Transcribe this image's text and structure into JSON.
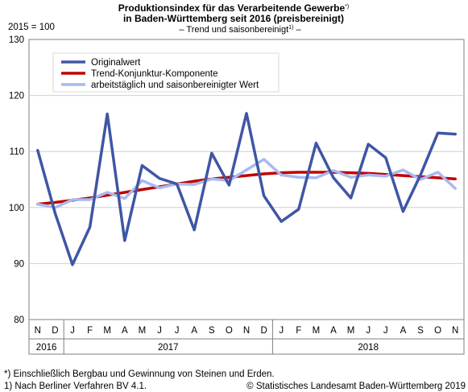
{
  "chart_data": {
    "type": "line",
    "title_line1": "Produktionsindex für das Verarbeitende Gewerbe",
    "title_line1_sup": "*)",
    "title_line2": "in Baden-Württemberg seit 2016 (preisbereinigt)",
    "subtitle_prefix": "– Trend und saisonbereinigt",
    "subtitle_sup": "1)",
    "subtitle_suffix": " –",
    "ylabel": "2015 = 100",
    "ylim": [
      80,
      130
    ],
    "yticks": [
      80,
      90,
      100,
      110,
      120,
      130
    ],
    "grid": true,
    "legend_position": "top-left",
    "x": [
      "N",
      "D",
      "J",
      "F",
      "M",
      "A",
      "M",
      "J",
      "J",
      "A",
      "S",
      "O",
      "N",
      "D",
      "J",
      "F",
      "M",
      "A",
      "M",
      "J",
      "J",
      "A",
      "S",
      "O",
      "N"
    ],
    "years": [
      {
        "label": "2016",
        "start": 0,
        "end": 1
      },
      {
        "label": "2017",
        "start": 2,
        "end": 13
      },
      {
        "label": "2018",
        "start": 14,
        "end": 24
      }
    ],
    "series": [
      {
        "name": "Originalwert",
        "color": "#3f56a4",
        "values": [
          110.2,
          99.0,
          89.8,
          96.5,
          116.7,
          94.1,
          107.5,
          105.2,
          104.2,
          96.0,
          109.7,
          104.0,
          116.8,
          102.1,
          97.5,
          99.7,
          111.5,
          105.3,
          101.7,
          111.3,
          108.9,
          99.3,
          105.8,
          113.3,
          113.1
        ]
      },
      {
        "name": "Trend-Konjunktur-Komponente",
        "color": "#c00000",
        "values": [
          100.6,
          100.9,
          101.3,
          101.7,
          102.2,
          102.7,
          103.2,
          103.7,
          104.2,
          104.7,
          105.1,
          105.4,
          105.7,
          106.0,
          106.2,
          106.3,
          106.3,
          106.3,
          106.2,
          106.1,
          105.9,
          105.7,
          105.5,
          105.3,
          105.1
        ]
      },
      {
        "name": "arbeitstäglich und saisonbereinigter Wert",
        "color": "#a9b9f0",
        "values": [
          100.6,
          100.0,
          101.4,
          101.4,
          102.7,
          101.6,
          104.8,
          103.5,
          104.2,
          104.1,
          105.1,
          104.8,
          106.7,
          108.6,
          105.8,
          105.4,
          105.3,
          106.6,
          105.4,
          105.8,
          105.6,
          106.7,
          105.0,
          106.3,
          103.4
        ]
      }
    ]
  },
  "footnotes": {
    "note1": "*) Einschließlich Bergbau und Gewinnung von Steinen und Erden.",
    "note2": "1) Nach Berliner Verfahren BV 4.1.",
    "copyright": "© Statistisches Landesamt Baden-Württemberg 2019"
  }
}
